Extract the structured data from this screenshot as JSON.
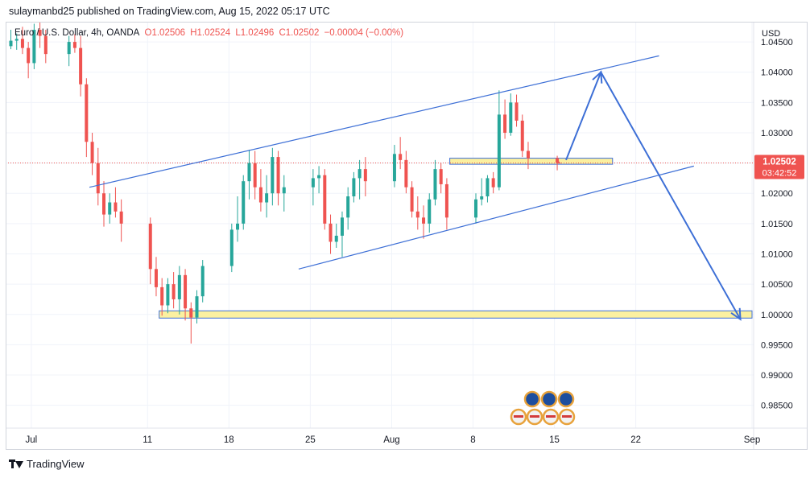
{
  "publisher_line": "sulaymanbd25 published on TradingView.com, Aug 15, 2022 05:17 UTC",
  "legend": {
    "symbol": "Euro / U.S. Dollar, 4h, OANDA",
    "open": "O1.02506",
    "high": "H1.02524",
    "low": "L1.02496",
    "close": "C1.02502",
    "change": "−0.00004 (−0.00%)"
  },
  "price_axis": {
    "currency": "USD",
    "tick_labels": [
      "1.04500",
      "1.04000",
      "1.03500",
      "1.03000",
      "1.02500",
      "1.02000",
      "1.01500",
      "1.01000",
      "1.00500",
      "1.00000",
      "0.99500",
      "0.99000",
      "0.98500"
    ],
    "last_price_label": "1.02502",
    "countdown_label": "03:42:52"
  },
  "time_axis": {
    "tick_labels": [
      "Jul",
      "11",
      "18",
      "25",
      "Aug",
      "8",
      "15",
      "22",
      "Sep"
    ]
  },
  "brand": "TradingView",
  "colors": {
    "up": "#26a69a",
    "down": "#ef5350",
    "drawing": "#3d6fd6",
    "zone_fill": "#fbf0a0",
    "last_price": "#ef5350"
  },
  "chart_data": {
    "type": "candlestick",
    "instrument": "EUR/USD",
    "interval": "4h",
    "x_range": [
      "2022-06-29",
      "2022-09-01"
    ],
    "y_range": [
      0.9815,
      1.0482
    ],
    "last_price": 1.02502,
    "series": [
      {
        "t": "2022-06-29 00:00",
        "o": 1.0443,
        "h": 1.047,
        "l": 1.0438,
        "c": 1.0452
      },
      {
        "t": "2022-06-29 12:00",
        "o": 1.0452,
        "h": 1.0464,
        "l": 1.0437,
        "c": 1.0455
      },
      {
        "t": "2022-06-30 00:00",
        "o": 1.0455,
        "h": 1.0475,
        "l": 1.043,
        "c": 1.044
      },
      {
        "t": "2022-06-30 12:00",
        "o": 1.044,
        "h": 1.045,
        "l": 1.039,
        "c": 1.0415
      },
      {
        "t": "2022-07-01 00:00",
        "o": 1.0415,
        "h": 1.048,
        "l": 1.0405,
        "c": 1.047
      },
      {
        "t": "2022-07-01 12:00",
        "o": 1.047,
        "h": 1.0482,
        "l": 1.044,
        "c": 1.046
      },
      {
        "t": "2022-07-02 00:00",
        "o": 1.046,
        "h": 1.047,
        "l": 1.0415,
        "c": 1.043
      },
      {
        "t": "2022-07-04 00:00",
        "o": 1.043,
        "h": 1.046,
        "l": 1.041,
        "c": 1.045
      },
      {
        "t": "2022-07-04 12:00",
        "o": 1.045,
        "h": 1.0463,
        "l": 1.0432,
        "c": 1.044
      },
      {
        "t": "2022-07-05 00:00",
        "o": 1.044,
        "h": 1.046,
        "l": 1.036,
        "c": 1.038
      },
      {
        "t": "2022-07-05 12:00",
        "o": 1.038,
        "h": 1.039,
        "l": 1.026,
        "c": 1.0285
      },
      {
        "t": "2022-07-06 00:00",
        "o": 1.0285,
        "h": 1.03,
        "l": 1.023,
        "c": 1.025
      },
      {
        "t": "2022-07-06 12:00",
        "o": 1.025,
        "h": 1.0275,
        "l": 1.018,
        "c": 1.02
      },
      {
        "t": "2022-07-07 00:00",
        "o": 1.02,
        "h": 1.022,
        "l": 1.0145,
        "c": 1.0165
      },
      {
        "t": "2022-07-07 12:00",
        "o": 1.0165,
        "h": 1.02,
        "l": 1.015,
        "c": 1.0185
      },
      {
        "t": "2022-07-08 00:00",
        "o": 1.0185,
        "h": 1.021,
        "l": 1.016,
        "c": 1.017
      },
      {
        "t": "2022-07-08 12:00",
        "o": 1.017,
        "h": 1.019,
        "l": 1.012,
        "c": 1.015
      },
      {
        "t": "2022-07-11 00:00",
        "o": 1.015,
        "h": 1.016,
        "l": 1.005,
        "c": 1.0075
      },
      {
        "t": "2022-07-11 12:00",
        "o": 1.0075,
        "h": 1.0095,
        "l": 1.003,
        "c": 1.0045
      },
      {
        "t": "2022-07-12 00:00",
        "o": 1.0045,
        "h": 1.006,
        "l": 0.9998,
        "c": 1.0015
      },
      {
        "t": "2022-07-12 12:00",
        "o": 1.0015,
        "h": 1.006,
        "l": 1.0002,
        "c": 1.005
      },
      {
        "t": "2022-07-13 00:00",
        "o": 1.005,
        "h": 1.007,
        "l": 1.001,
        "c": 1.0025
      },
      {
        "t": "2022-07-13 12:00",
        "o": 1.0025,
        "h": 1.008,
        "l": 1.0,
        "c": 1.0065
      },
      {
        "t": "2022-07-14 00:00",
        "o": 1.0065,
        "h": 1.0075,
        "l": 0.999,
        "c": 1.001
      },
      {
        "t": "2022-07-14 12:00",
        "o": 1.001,
        "h": 1.002,
        "l": 0.9952,
        "c": 0.9995
      },
      {
        "t": "2022-07-15 00:00",
        "o": 0.9995,
        "h": 1.004,
        "l": 0.9985,
        "c": 1.003
      },
      {
        "t": "2022-07-15 12:00",
        "o": 1.003,
        "h": 1.009,
        "l": 1.002,
        "c": 1.008
      },
      {
        "t": "2022-07-18 00:00",
        "o": 1.008,
        "h": 1.015,
        "l": 1.007,
        "c": 1.014
      },
      {
        "t": "2022-07-18 12:00",
        "o": 1.014,
        "h": 1.0195,
        "l": 1.012,
        "c": 1.015
      },
      {
        "t": "2022-07-19 00:00",
        "o": 1.015,
        "h": 1.023,
        "l": 1.014,
        "c": 1.022
      },
      {
        "t": "2022-07-19 12:00",
        "o": 1.022,
        "h": 1.0272,
        "l": 1.019,
        "c": 1.025
      },
      {
        "t": "2022-07-20 00:00",
        "o": 1.025,
        "h": 1.027,
        "l": 1.019,
        "c": 1.021
      },
      {
        "t": "2022-07-20 12:00",
        "o": 1.021,
        "h": 1.024,
        "l": 1.017,
        "c": 1.0185
      },
      {
        "t": "2022-07-21 00:00",
        "o": 1.0185,
        "h": 1.023,
        "l": 1.016,
        "c": 1.02
      },
      {
        "t": "2022-07-21 12:00",
        "o": 1.02,
        "h": 1.0275,
        "l": 1.018,
        "c": 1.026
      },
      {
        "t": "2022-07-22 00:00",
        "o": 1.026,
        "h": 1.027,
        "l": 1.018,
        "c": 1.02
      },
      {
        "t": "2022-07-22 12:00",
        "o": 1.02,
        "h": 1.023,
        "l": 1.017,
        "c": 1.021
      },
      {
        "t": "2022-07-25 00:00",
        "o": 1.021,
        "h": 1.024,
        "l": 1.018,
        "c": 1.0225
      },
      {
        "t": "2022-07-25 12:00",
        "o": 1.0225,
        "h": 1.0245,
        "l": 1.02,
        "c": 1.023
      },
      {
        "t": "2022-07-26 00:00",
        "o": 1.023,
        "h": 1.024,
        "l": 1.014,
        "c": 1.015
      },
      {
        "t": "2022-07-26 12:00",
        "o": 1.015,
        "h": 1.0165,
        "l": 1.01,
        "c": 1.012
      },
      {
        "t": "2022-07-27 00:00",
        "o": 1.012,
        "h": 1.015,
        "l": 1.011,
        "c": 1.013
      },
      {
        "t": "2022-07-27 12:00",
        "o": 1.013,
        "h": 1.017,
        "l": 1.0095,
        "c": 1.016
      },
      {
        "t": "2022-07-28 00:00",
        "o": 1.016,
        "h": 1.021,
        "l": 1.014,
        "c": 1.0195
      },
      {
        "t": "2022-07-28 12:00",
        "o": 1.0195,
        "h": 1.0235,
        "l": 1.0185,
        "c": 1.0225
      },
      {
        "t": "2022-07-29 00:00",
        "o": 1.0225,
        "h": 1.0255,
        "l": 1.019,
        "c": 1.024
      },
      {
        "t": "2022-07-29 12:00",
        "o": 1.024,
        "h": 1.026,
        "l": 1.0195,
        "c": 1.022
      },
      {
        "t": "2022-08-01 00:00",
        "o": 1.022,
        "h": 1.028,
        "l": 1.021,
        "c": 1.0265
      },
      {
        "t": "2022-08-01 12:00",
        "o": 1.0265,
        "h": 1.0293,
        "l": 1.024,
        "c": 1.0255
      },
      {
        "t": "2022-08-02 00:00",
        "o": 1.0255,
        "h": 1.027,
        "l": 1.02,
        "c": 1.021
      },
      {
        "t": "2022-08-02 12:00",
        "o": 1.021,
        "h": 1.022,
        "l": 1.016,
        "c": 1.017
      },
      {
        "t": "2022-08-03 00:00",
        "o": 1.017,
        "h": 1.0195,
        "l": 1.014,
        "c": 1.016
      },
      {
        "t": "2022-08-03 12:00",
        "o": 1.016,
        "h": 1.018,
        "l": 1.0125,
        "c": 1.015
      },
      {
        "t": "2022-08-04 00:00",
        "o": 1.015,
        "h": 1.02,
        "l": 1.0135,
        "c": 1.019
      },
      {
        "t": "2022-08-04 12:00",
        "o": 1.019,
        "h": 1.0255,
        "l": 1.018,
        "c": 1.024
      },
      {
        "t": "2022-08-05 00:00",
        "o": 1.024,
        "h": 1.025,
        "l": 1.02,
        "c": 1.0215
      },
      {
        "t": "2022-08-05 12:00",
        "o": 1.0215,
        "h": 1.0225,
        "l": 1.014,
        "c": 1.016
      },
      {
        "t": "2022-08-08 00:00",
        "o": 1.016,
        "h": 1.02,
        "l": 1.015,
        "c": 1.019
      },
      {
        "t": "2022-08-08 12:00",
        "o": 1.019,
        "h": 1.0225,
        "l": 1.018,
        "c": 1.0195
      },
      {
        "t": "2022-08-09 00:00",
        "o": 1.0195,
        "h": 1.023,
        "l": 1.0185,
        "c": 1.0225
      },
      {
        "t": "2022-08-09 12:00",
        "o": 1.0225,
        "h": 1.0235,
        "l": 1.02,
        "c": 1.021
      },
      {
        "t": "2022-08-10 00:00",
        "o": 1.021,
        "h": 1.037,
        "l": 1.0205,
        "c": 1.033
      },
      {
        "t": "2022-08-10 12:00",
        "o": 1.033,
        "h": 1.0355,
        "l": 1.029,
        "c": 1.03
      },
      {
        "t": "2022-08-11 00:00",
        "o": 1.03,
        "h": 1.0365,
        "l": 1.0295,
        "c": 1.035
      },
      {
        "t": "2022-08-11 12:00",
        "o": 1.035,
        "h": 1.0363,
        "l": 1.031,
        "c": 1.032
      },
      {
        "t": "2022-08-12 00:00",
        "o": 1.032,
        "h": 1.033,
        "l": 1.026,
        "c": 1.027
      },
      {
        "t": "2022-08-12 12:00",
        "o": 1.027,
        "h": 1.0285,
        "l": 1.024,
        "c": 1.0258
      },
      {
        "t": "2022-08-15 00:00",
        "o": 1.0258,
        "h": 1.0262,
        "l": 1.0238,
        "c": 1.02506
      },
      {
        "t": "2022-08-15 04:00",
        "o": 1.02506,
        "h": 1.02524,
        "l": 1.02496,
        "c": 1.02502
      }
    ],
    "drawings": [
      {
        "kind": "channel_upper_line",
        "from": [
          "2022-07-06",
          1.021
        ],
        "to": [
          "2022-08-24",
          1.0427
        ]
      },
      {
        "kind": "channel_lower_line",
        "from": [
          "2022-07-24",
          1.0075
        ],
        "to": [
          "2022-08-27",
          1.0245
        ]
      },
      {
        "kind": "zone",
        "from": [
          "2022-08-06",
          1.0248
        ],
        "to": [
          "2022-08-20",
          1.0258
        ]
      },
      {
        "kind": "zone",
        "from": [
          "2022-07-12",
          0.9994
        ],
        "to": [
          "2022-09-01",
          1.0006
        ]
      },
      {
        "kind": "arrow_path",
        "points": [
          [
            "2022-08-16",
            1.0255
          ],
          [
            "2022-08-19",
            1.04
          ],
          [
            "2022-08-31",
            0.9992
          ]
        ]
      }
    ]
  }
}
